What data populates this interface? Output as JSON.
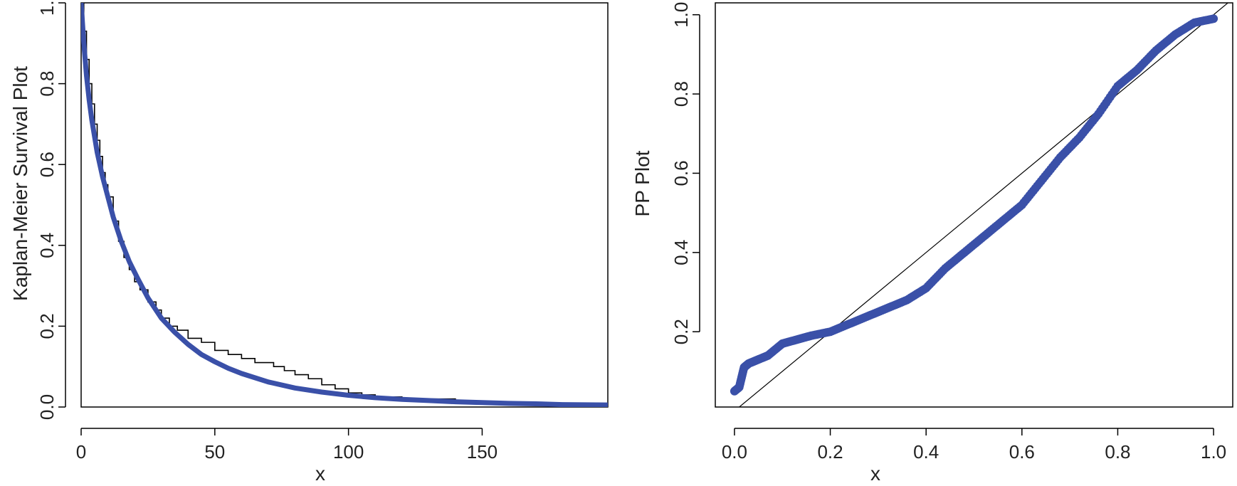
{
  "colors": {
    "fit": "#3a50a8",
    "empirical": "#000000",
    "axes": "#000000"
  },
  "chart_data": [
    {
      "type": "line",
      "ylabel": "Kaplan-Meier Survival Plot",
      "xlabel": "x",
      "xlim": [
        0,
        197
      ],
      "ylim": [
        0,
        1
      ],
      "x_ticks": [
        0,
        50,
        100,
        150
      ],
      "x_tick_labels": [
        "0",
        "50",
        "100",
        "150"
      ],
      "y_ticks": [
        0,
        0.2,
        0.4,
        0.6,
        0.8,
        1.0
      ],
      "y_tick_labels": [
        "0.0",
        "0.2",
        "0.4",
        "0.6",
        "0.8",
        "1.0"
      ],
      "grid": false,
      "series": [
        {
          "style": "step",
          "color": "#000000",
          "x": [
            0,
            1,
            2,
            3,
            4,
            5,
            6,
            7,
            8,
            9,
            10,
            12,
            14,
            16,
            18,
            20,
            22,
            25,
            28,
            30,
            33,
            36,
            40,
            45,
            50,
            55,
            60,
            65,
            72,
            76,
            80,
            85,
            90,
            95,
            100,
            105,
            110,
            120,
            130,
            140,
            150,
            160,
            170,
            180,
            197
          ],
          "y": [
            1.0,
            0.93,
            0.86,
            0.8,
            0.75,
            0.7,
            0.66,
            0.62,
            0.58,
            0.55,
            0.52,
            0.46,
            0.41,
            0.37,
            0.34,
            0.31,
            0.29,
            0.26,
            0.24,
            0.22,
            0.2,
            0.19,
            0.17,
            0.16,
            0.14,
            0.13,
            0.12,
            0.11,
            0.1,
            0.09,
            0.08,
            0.07,
            0.055,
            0.045,
            0.035,
            0.03,
            0.025,
            0.02,
            0.02,
            0.015,
            0.012,
            0.009,
            0.007,
            0.005,
            0.004
          ]
        },
        {
          "style": "curve",
          "color": "#3a50a8",
          "x": [
            0,
            1,
            2,
            3,
            4,
            5,
            6,
            8,
            10,
            12,
            15,
            18,
            21,
            25,
            30,
            35,
            40,
            45,
            50,
            55,
            60,
            70,
            80,
            90,
            100,
            110,
            120,
            130,
            140,
            150,
            160,
            170,
            180,
            197
          ],
          "y": [
            1.0,
            0.9,
            0.82,
            0.76,
            0.71,
            0.67,
            0.63,
            0.57,
            0.52,
            0.47,
            0.41,
            0.36,
            0.32,
            0.27,
            0.22,
            0.185,
            0.155,
            0.13,
            0.112,
            0.096,
            0.083,
            0.062,
            0.047,
            0.037,
            0.029,
            0.023,
            0.019,
            0.016,
            0.013,
            0.011,
            0.009,
            0.008,
            0.006,
            0.005
          ]
        }
      ]
    },
    {
      "type": "scatter",
      "ylabel": "PP Plot",
      "xlabel": "x",
      "xlim": [
        -0.04,
        1.04
      ],
      "ylim": [
        0.01,
        1.03
      ],
      "x_ticks": [
        0,
        0.2,
        0.4,
        0.6,
        0.8,
        1.0
      ],
      "x_tick_labels": [
        "0.0",
        "0.2",
        "0.4",
        "0.6",
        "0.8",
        "1.0"
      ],
      "y_ticks": [
        0.2,
        0.4,
        0.6,
        0.8,
        1.0
      ],
      "y_tick_labels": [
        "0.2",
        "0.4",
        "0.6",
        "0.8",
        "1.0"
      ],
      "grid": false,
      "reference_line": {
        "from": [
          0,
          0
        ],
        "to": [
          1.04,
          1.04
        ]
      },
      "curve_points": [
        [
          0.0,
          0.05
        ],
        [
          0.01,
          0.06
        ],
        [
          0.02,
          0.11
        ],
        [
          0.03,
          0.12
        ],
        [
          0.05,
          0.13
        ],
        [
          0.07,
          0.14
        ],
        [
          0.1,
          0.17
        ],
        [
          0.13,
          0.18
        ],
        [
          0.16,
          0.19
        ],
        [
          0.2,
          0.2
        ],
        [
          0.24,
          0.22
        ],
        [
          0.28,
          0.24
        ],
        [
          0.32,
          0.26
        ],
        [
          0.36,
          0.28
        ],
        [
          0.4,
          0.31
        ],
        [
          0.44,
          0.36
        ],
        [
          0.48,
          0.4
        ],
        [
          0.52,
          0.44
        ],
        [
          0.56,
          0.48
        ],
        [
          0.6,
          0.52
        ],
        [
          0.64,
          0.58
        ],
        [
          0.68,
          0.64
        ],
        [
          0.72,
          0.69
        ],
        [
          0.76,
          0.75
        ],
        [
          0.8,
          0.82
        ],
        [
          0.84,
          0.86
        ],
        [
          0.88,
          0.91
        ],
        [
          0.92,
          0.95
        ],
        [
          0.96,
          0.98
        ],
        [
          1.0,
          0.99
        ]
      ]
    }
  ]
}
